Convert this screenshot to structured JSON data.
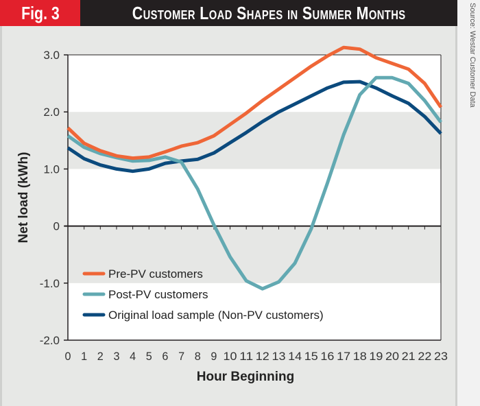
{
  "header": {
    "fig_label": "Fig. 3",
    "title": "Customer Load Shapes in Summer Months",
    "source": "Source: Westar Customer Data"
  },
  "colors": {
    "header_bg": "#231f20",
    "fig_label_bg": "#e2202c",
    "pre_pv": "#ef6637",
    "post_pv": "#62a9b2",
    "original": "#0b4a7d",
    "band": "#e6e7e5",
    "plot_bg": "#ffffff"
  },
  "chart_data": {
    "type": "line",
    "title": "Customer Load Shapes in Summer Months",
    "xlabel": "Hour Beginning",
    "ylabel": "Net load (kWh)",
    "x": [
      0,
      1,
      2,
      3,
      4,
      5,
      6,
      7,
      8,
      9,
      10,
      11,
      12,
      13,
      14,
      15,
      16,
      17,
      18,
      19,
      20,
      21,
      22,
      23
    ],
    "x_tick_labels": [
      "0",
      "1",
      "2",
      "3",
      "4",
      "5",
      "6",
      "7",
      "8",
      "9",
      "10",
      "11",
      "12",
      "13",
      "14",
      "15",
      "16",
      "17",
      "18",
      "19",
      "20",
      "21",
      "22",
      "23"
    ],
    "ylim": [
      -2.0,
      3.0
    ],
    "y_ticks": [
      -2.0,
      -1.0,
      0,
      1.0,
      2.0,
      3.0
    ],
    "y_tick_labels": [
      "-2.0",
      "-1.0",
      "0",
      "1.0",
      "2.0",
      "3.0"
    ],
    "grid": false,
    "shaded_bands": [
      [
        1.0,
        2.0
      ],
      [
        -1.0,
        0
      ]
    ],
    "legend_position": "lower-left",
    "series": [
      {
        "name": "Pre-PV customers",
        "color": "#ef6637",
        "values": [
          1.72,
          1.45,
          1.32,
          1.23,
          1.19,
          1.21,
          1.3,
          1.4,
          1.46,
          1.58,
          1.78,
          1.98,
          2.2,
          2.4,
          2.6,
          2.8,
          2.98,
          3.13,
          3.1,
          2.95,
          2.85,
          2.75,
          2.5,
          2.08
        ]
      },
      {
        "name": "Post-PV customers",
        "color": "#62a9b2",
        "values": [
          1.58,
          1.38,
          1.27,
          1.2,
          1.14,
          1.15,
          1.21,
          1.12,
          0.65,
          0.02,
          -0.54,
          -0.96,
          -1.1,
          -0.98,
          -0.65,
          -0.05,
          0.75,
          1.6,
          2.3,
          2.6,
          2.6,
          2.5,
          2.2,
          1.82
        ]
      },
      {
        "name": "Original load sample (Non-PV customers)",
        "color": "#0b4a7d",
        "values": [
          1.37,
          1.18,
          1.07,
          1.0,
          0.96,
          1.0,
          1.1,
          1.14,
          1.17,
          1.28,
          1.46,
          1.64,
          1.83,
          2.0,
          2.14,
          2.28,
          2.42,
          2.52,
          2.53,
          2.42,
          2.28,
          2.15,
          1.92,
          1.62
        ]
      }
    ]
  }
}
